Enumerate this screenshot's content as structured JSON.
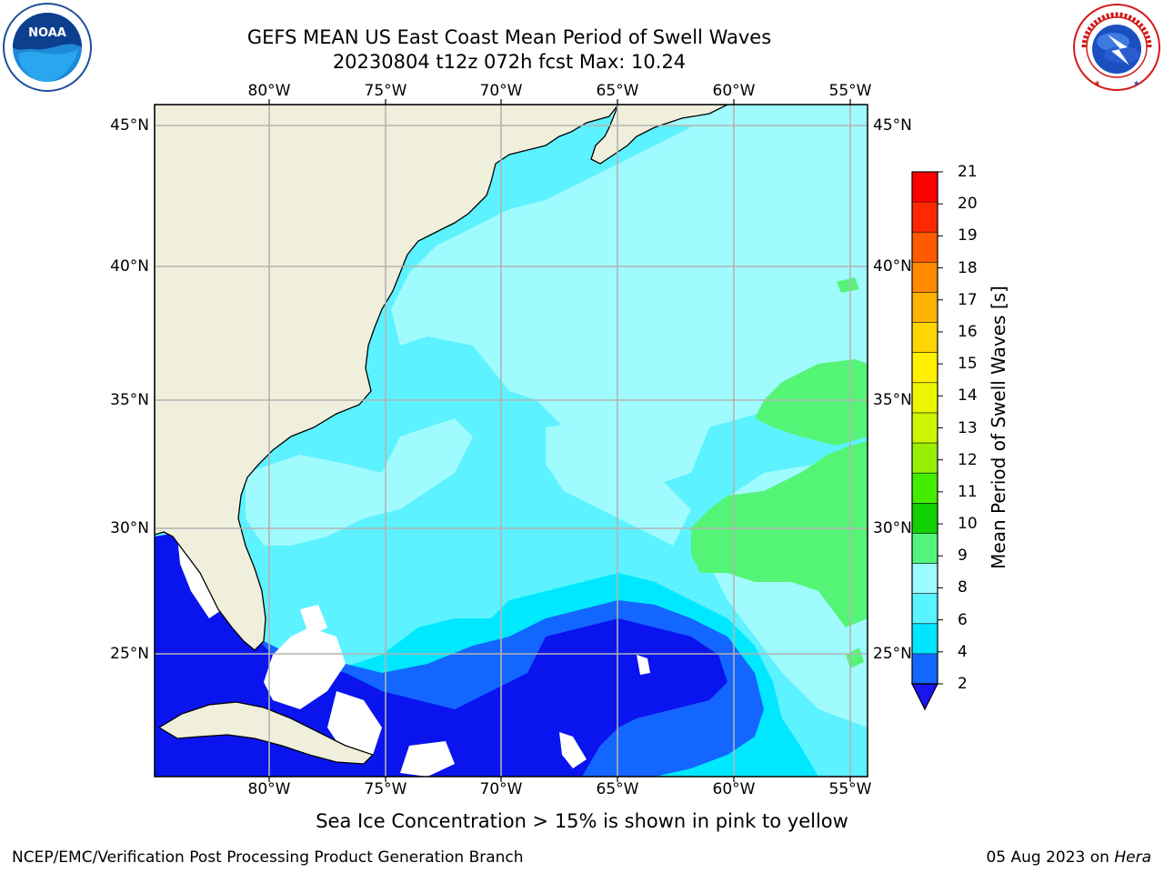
{
  "title": {
    "line1": "GEFS MEAN US East Coast Mean Period of Swell Waves",
    "line2": "20230804 t12z 072h fcst   Max: 10.24"
  },
  "logos": {
    "left": "NOAA",
    "right": "NATIONAL WEATHER SERVICE"
  },
  "map": {
    "lon_labels": [
      "80°W",
      "75°W",
      "70°W",
      "65°W",
      "60°W",
      "55°W"
    ],
    "lat_labels": [
      "45°N",
      "40°N",
      "35°N",
      "30°N",
      "25°N"
    ],
    "colors": {
      "land": "#efefdc",
      "band_2_4": "#0a14ee",
      "band_4_6": "#00e8ff",
      "band_6_8": "#5cf2ff",
      "band_8_9": "#a0fbff",
      "band_9_10": "#54f576",
      "white": "#ffffff"
    }
  },
  "colorbar": {
    "label": "Mean Period of Swell Waves [s]",
    "ticks": [
      "2",
      "4",
      "6",
      "8",
      "9",
      "10",
      "11",
      "12",
      "13",
      "14",
      "15",
      "16",
      "17",
      "18",
      "19",
      "20",
      "21"
    ],
    "colors": [
      "#1366ff",
      "#00e5ff",
      "#58f4ff",
      "#9dfcff",
      "#52f57a",
      "#10d200",
      "#44ed00",
      "#98f000",
      "#ccf500",
      "#eef500",
      "#fff100",
      "#ffd600",
      "#ffb300",
      "#ff8a00",
      "#ff5a00",
      "#ff2800",
      "#ff0000"
    ],
    "extend_color": "#1a14f0"
  },
  "ice_note": "Sea Ice Concentration > 15% is shown in pink to yellow",
  "footer": {
    "left": "NCEP/EMC/Verification Post Processing Product Generation Branch",
    "right_date": "05 Aug 2023 on ",
    "right_host": "Hera"
  }
}
